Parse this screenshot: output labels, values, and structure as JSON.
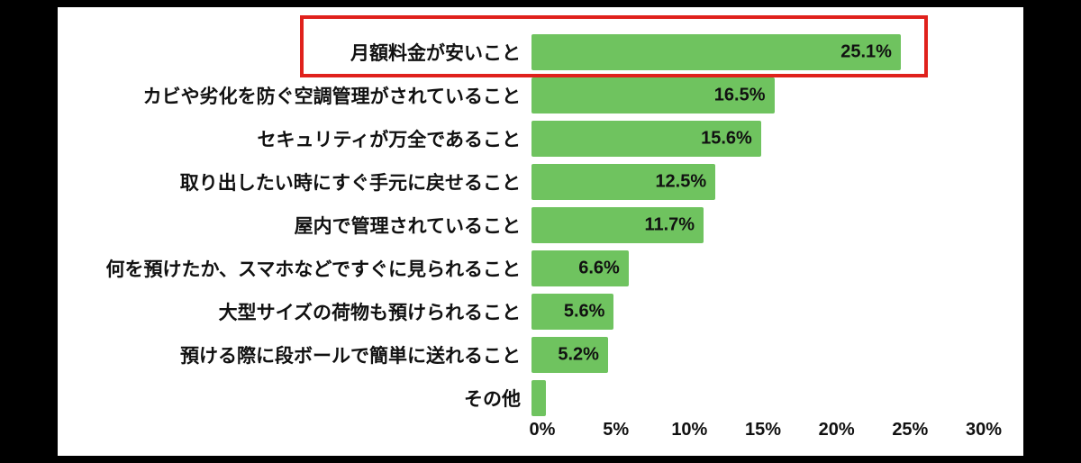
{
  "colors": {
    "bar": "#6fc35f",
    "highlight": "#e0211c",
    "text": "#111111",
    "background": "#000000",
    "panel": "#ffffff"
  },
  "chart_data": {
    "type": "bar",
    "orientation": "horizontal",
    "title": "",
    "xlabel": "",
    "ylabel": "",
    "categories": [
      "月額料金が安いこと",
      "カビや劣化を防ぐ空調管理がされていること",
      "セキュリティが万全であること",
      "取り出したい時にすぐ手元に戻せること",
      "屋内で管理されていること",
      "何を預けたか、スマホなどですぐに見られること",
      "大型サイズの荷物も預けられること",
      "預ける際に段ボールで簡単に送れること",
      "その他"
    ],
    "values": [
      25.1,
      16.5,
      15.6,
      12.5,
      11.7,
      6.6,
      5.6,
      5.2,
      1.0
    ],
    "value_labels": [
      "25.1%",
      "16.5%",
      "15.6%",
      "12.5%",
      "11.7%",
      "6.6%",
      "5.6%",
      "5.2%",
      ""
    ],
    "x_tick_labels": [
      "0%",
      "5%",
      "10%",
      "15%",
      "20%",
      "25%",
      "30%"
    ],
    "x_tick_values": [
      0,
      5,
      10,
      15,
      20,
      25,
      30
    ],
    "xlim": [
      0,
      30
    ],
    "grid": false,
    "legend": false,
    "highlight": {
      "row_index": 0,
      "style": "red-outline"
    }
  }
}
